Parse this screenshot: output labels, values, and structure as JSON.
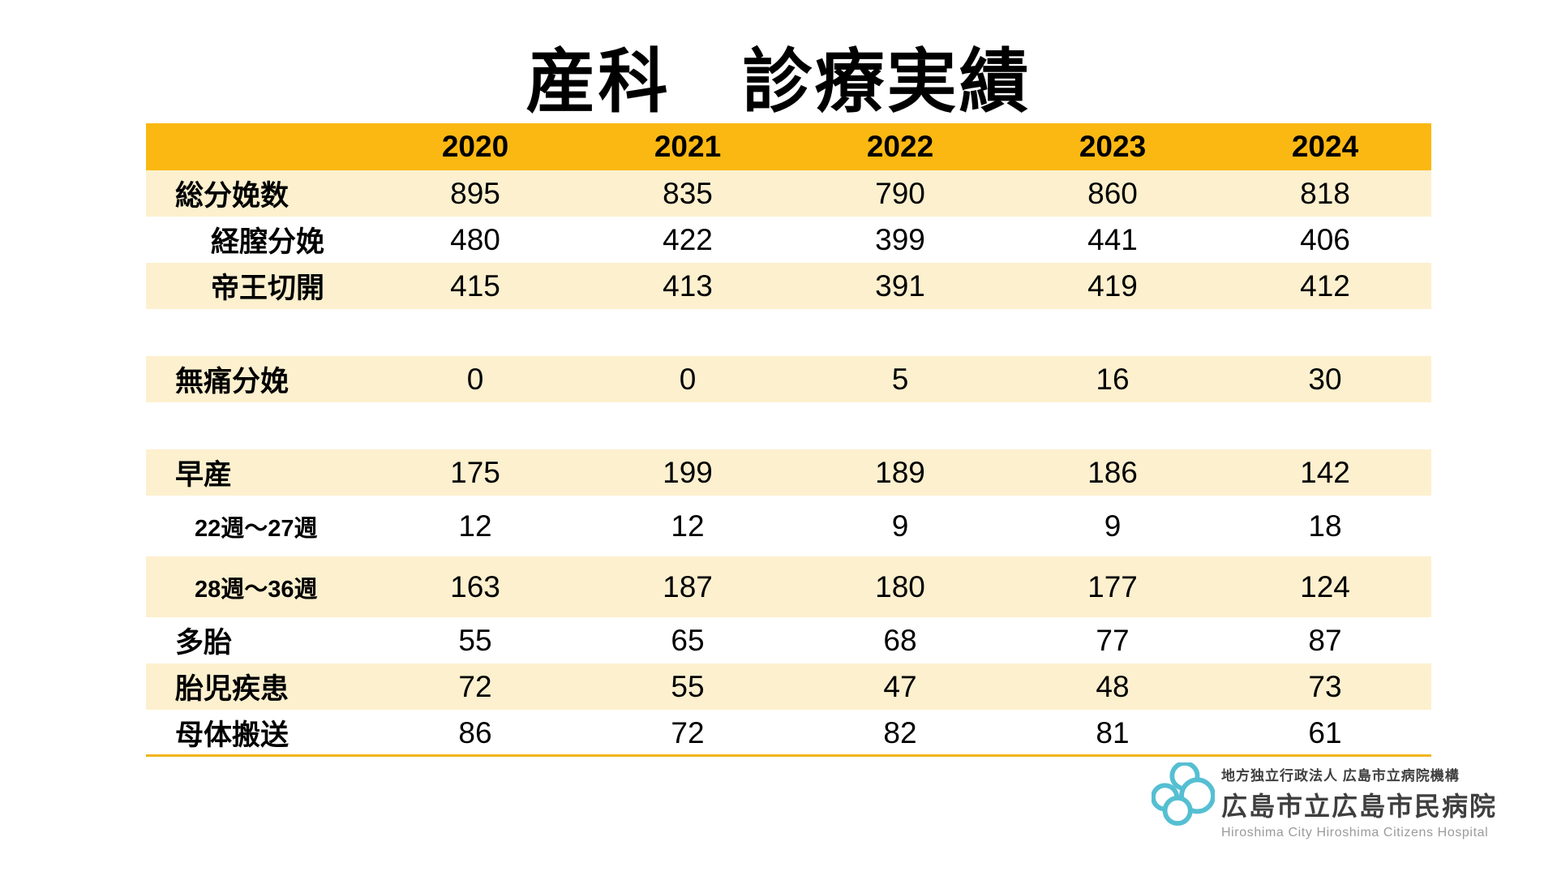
{
  "title": "産科　診療実績",
  "table": {
    "years": [
      "2020",
      "2021",
      "2022",
      "2023",
      "2024"
    ],
    "rows": [
      {
        "label": "総分娩数",
        "values": [
          "895",
          "835",
          "790",
          "860",
          "818"
        ],
        "bg": "cream",
        "indent": 0
      },
      {
        "label": "経膣分娩",
        "values": [
          "480",
          "422",
          "399",
          "441",
          "406"
        ],
        "bg": "white",
        "indent": 1
      },
      {
        "label": "帝王切開",
        "values": [
          "415",
          "413",
          "391",
          "419",
          "412"
        ],
        "bg": "cream",
        "indent": 1
      },
      {
        "spacer": true
      },
      {
        "label": "無痛分娩",
        "values": [
          "0",
          "0",
          "5",
          "16",
          "30"
        ],
        "bg": "cream",
        "indent": 0
      },
      {
        "spacer": true
      },
      {
        "label": "早産",
        "values": [
          "175",
          "199",
          "189",
          "186",
          "142"
        ],
        "bg": "cream",
        "indent": 0
      },
      {
        "label": "22週〜27週",
        "values": [
          "12",
          "12",
          "9",
          "9",
          "18"
        ],
        "bg": "white",
        "indent": 1,
        "small": true,
        "tall": true
      },
      {
        "label": "28週〜36週",
        "values": [
          "163",
          "187",
          "180",
          "177",
          "124"
        ],
        "bg": "cream",
        "indent": 1,
        "small": true,
        "tall": true
      },
      {
        "label": "多胎",
        "values": [
          "55",
          "65",
          "68",
          "77",
          "87"
        ],
        "bg": "white",
        "indent": 0
      },
      {
        "label": "胎児疾患",
        "values": [
          "72",
          "55",
          "47",
          "48",
          "73"
        ],
        "bg": "cream",
        "indent": 0
      },
      {
        "label": "母体搬送",
        "values": [
          "86",
          "72",
          "82",
          "81",
          "61"
        ],
        "bg": "white",
        "indent": 0
      }
    ]
  },
  "chart_data": {
    "type": "table",
    "title": "産科　診療実績",
    "columns": [
      "",
      "2020",
      "2021",
      "2022",
      "2023",
      "2024"
    ],
    "rows": [
      {
        "label": "総分娩数",
        "values": [
          895,
          835,
          790,
          860,
          818
        ]
      },
      {
        "label": "経膣分娩",
        "values": [
          480,
          422,
          399,
          441,
          406
        ]
      },
      {
        "label": "帝王切開",
        "values": [
          415,
          413,
          391,
          419,
          412
        ]
      },
      {
        "label": "無痛分娩",
        "values": [
          0,
          0,
          5,
          16,
          30
        ]
      },
      {
        "label": "早産",
        "values": [
          175,
          199,
          189,
          186,
          142
        ]
      },
      {
        "label": "22週〜27週",
        "values": [
          12,
          12,
          9,
          9,
          18
        ]
      },
      {
        "label": "28週〜36週",
        "values": [
          163,
          187,
          180,
          177,
          124
        ]
      },
      {
        "label": "多胎",
        "values": [
          55,
          65,
          68,
          77,
          87
        ]
      },
      {
        "label": "胎児疾患",
        "values": [
          72,
          55,
          47,
          48,
          73
        ]
      },
      {
        "label": "母体搬送",
        "values": [
          86,
          72,
          82,
          81,
          61
        ]
      }
    ]
  },
  "logo": {
    "org": "地方独立行政法人 広島市立病院機構",
    "name": "広島市立広島市民病院",
    "name_en": "Hiroshima City Hiroshima Citizens Hospital"
  },
  "colors": {
    "header_bg": "#FBB812",
    "row_cream": "#FCF0CE",
    "rule": "#F2B41C",
    "logo_blue": "#55BFD2",
    "logo_text": "#3F3F3F",
    "logo_text_muted": "#9B9B9B"
  }
}
